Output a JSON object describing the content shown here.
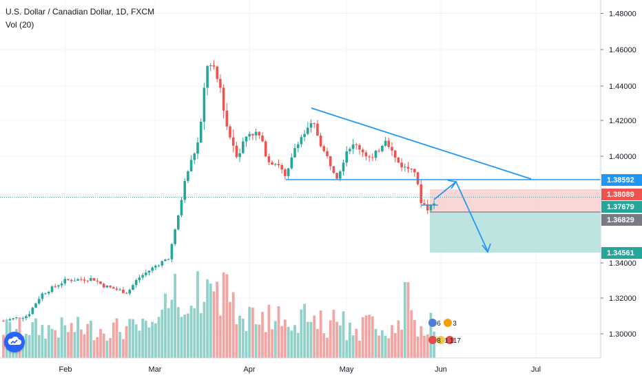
{
  "header": {
    "title": "U.S. Dollar / Canadian Dollar, 1D, FXCM",
    "indicator": "Vol (20)"
  },
  "chart_data": {
    "type": "candlestick",
    "ylim": [
      1.285,
      1.488
    ],
    "y_ticks": [
      "1.48000",
      "1.46000",
      "1.44000",
      "1.42000",
      "1.40000",
      "1.34000",
      "1.32000",
      "1.30000"
    ],
    "x_ticks": [
      "Feb",
      "Mar",
      "Apr",
      "May",
      "Jun",
      "Jul"
    ],
    "price_labels": [
      {
        "text": "1.38592",
        "kind": "blue"
      },
      {
        "text": "1.38089",
        "kind": "red"
      },
      {
        "text": "1.37679",
        "kind": "green"
      },
      {
        "text": "1.36829",
        "kind": "gray"
      },
      {
        "text": "1.34561",
        "kind": "green"
      }
    ],
    "drawing_levels": {
      "resistance_start": 1.4265,
      "resistance_end": 1.3859,
      "support": 1.3859,
      "entry": 1.37679,
      "stop": 1.38089,
      "target": 1.34561,
      "current": 1.36829
    },
    "overlay_numbers": [
      "6",
      "3",
      "8",
      "1",
      "117"
    ],
    "colors": {
      "up": "#26a69a",
      "down": "#ef5350",
      "up_vol": "#92d1c9",
      "down_vol": "#f3a5a3",
      "trendline": "#2196f3",
      "blue_label": "#2196f3",
      "red_label": "#ef5350",
      "green_label": "#26a69a",
      "gray_label": "#787b86"
    }
  }
}
